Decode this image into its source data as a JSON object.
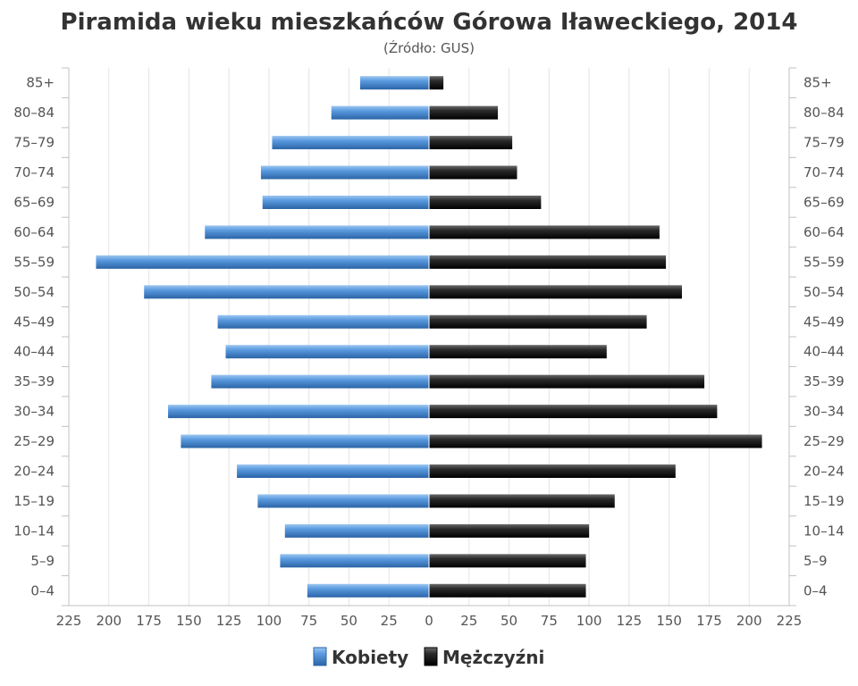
{
  "chart_data": {
    "type": "bar",
    "orientation": "horizontal",
    "layout": "population-pyramid",
    "title": "Piramida wieku mieszkańców Górowa Iławeckiego, 2014",
    "subtitle": "(Źródło: GUS)",
    "categories": [
      "0–4",
      "5–9",
      "10–14",
      "15–19",
      "20–24",
      "25–29",
      "30–34",
      "35–39",
      "40–44",
      "45–49",
      "50–54",
      "55–59",
      "60–64",
      "65–69",
      "70–74",
      "75–79",
      "80–84",
      "85+"
    ],
    "series": [
      {
        "name": "Kobiety",
        "side": "left",
        "color": "#4f8fd2",
        "values": [
          76,
          93,
          90,
          107,
          120,
          155,
          163,
          136,
          127,
          132,
          178,
          208,
          140,
          104,
          105,
          98,
          61,
          43
        ]
      },
      {
        "name": "Mężczyźni",
        "side": "right",
        "color": "#262626",
        "values": [
          98,
          98,
          100,
          116,
          154,
          208,
          180,
          172,
          111,
          136,
          158,
          148,
          144,
          70,
          55,
          52,
          43,
          9
        ]
      }
    ],
    "x_ticks": [
      "225",
      "200",
      "175",
      "150",
      "125",
      "100",
      "75",
      "50",
      "25",
      "0",
      "25",
      "50",
      "75",
      "100",
      "125",
      "150",
      "175",
      "200",
      "225"
    ],
    "xlim": [
      -225,
      225
    ],
    "grid": true,
    "legend_position": "bottom-center"
  }
}
